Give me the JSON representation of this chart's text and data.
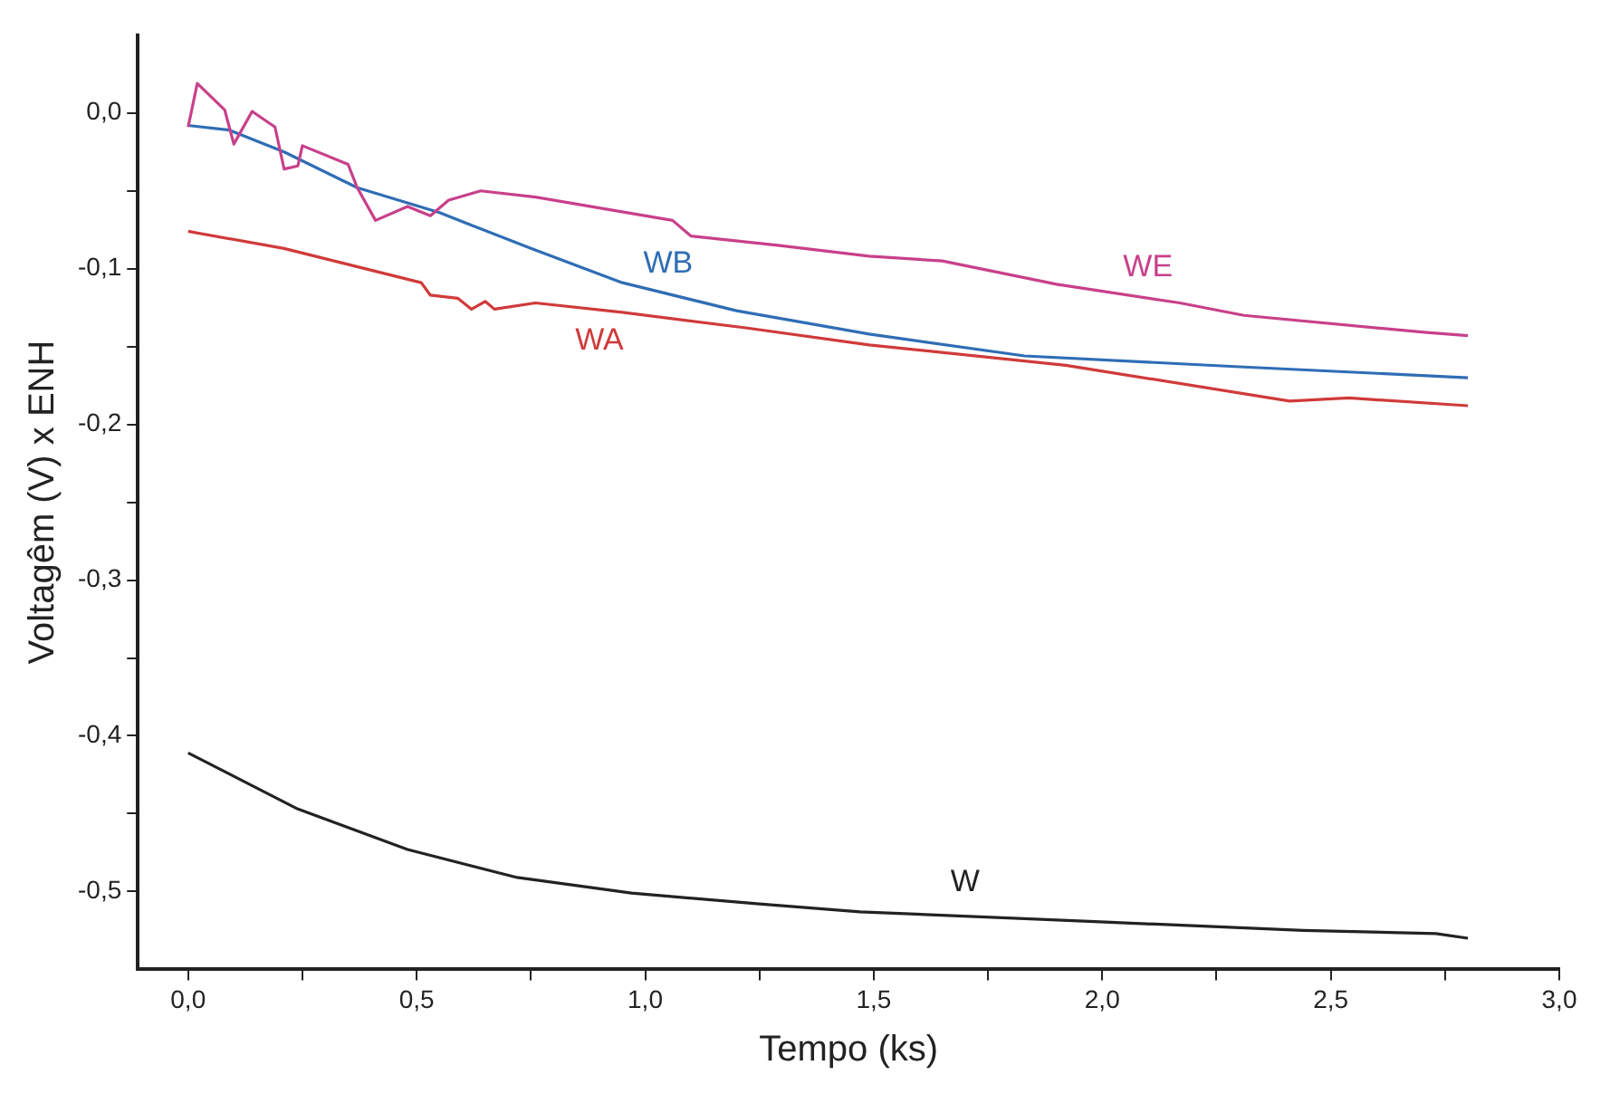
{
  "chart_data": {
    "type": "line",
    "xlabel": "Tempo (ks)",
    "ylabel": "Voltagêm (V) x ENH",
    "xlim": [
      -0.11,
      3.0
    ],
    "ylim": [
      -0.55,
      0.05
    ],
    "xticks": [
      {
        "value": 0,
        "label": "0,0"
      },
      {
        "value": 0.25,
        "label": null
      },
      {
        "value": 0.5,
        "label": "0,5"
      },
      {
        "value": 0.75,
        "label": null
      },
      {
        "value": 1,
        "label": "1,0"
      },
      {
        "value": 1.25,
        "label": null
      },
      {
        "value": 1.5,
        "label": "1,5"
      },
      {
        "value": 1.75,
        "label": null
      },
      {
        "value": 2,
        "label": "2,0"
      },
      {
        "value": 2.25,
        "label": null
      },
      {
        "value": 2.5,
        "label": "2,5"
      },
      {
        "value": 2.75,
        "label": null
      },
      {
        "value": 3,
        "label": "3,0"
      }
    ],
    "yticks": [
      {
        "value": -0.5,
        "label": "-0,5"
      },
      {
        "value": -0.45,
        "label": null
      },
      {
        "value": -0.4,
        "label": "-0,4"
      },
      {
        "value": -0.35,
        "label": null
      },
      {
        "value": -0.3,
        "label": "-0,3"
      },
      {
        "value": -0.25,
        "label": null
      },
      {
        "value": -0.2,
        "label": "-0,2"
      },
      {
        "value": -0.15,
        "label": null
      },
      {
        "value": -0.1,
        "label": "-0,1"
      },
      {
        "value": -0.05,
        "label": null
      },
      {
        "value": 0,
        "label": "0,0"
      }
    ],
    "grid": false,
    "legend": false,
    "marker": "none",
    "line_style": "solid",
    "series": [
      {
        "name": "WE",
        "color": "#c8408a",
        "x": [
          0,
          0.02,
          0.08,
          0.1,
          0.14,
          0.19,
          0.21,
          0.24,
          0.25,
          0.35,
          0.37,
          0.41,
          0.48,
          0.53,
          0.57,
          0.64,
          0.76,
          1.06,
          1.1,
          1.29,
          1.49,
          1.65,
          1.9,
          2.17,
          2.31,
          2.71,
          2.8
        ],
        "values": [
          -0.009,
          0.019,
          0.002,
          -0.02,
          0.001,
          -0.009,
          -0.036,
          -0.034,
          -0.021,
          -0.033,
          -0.048,
          -0.069,
          -0.06,
          -0.066,
          -0.056,
          -0.05,
          -0.054,
          -0.069,
          -0.079,
          -0.085,
          -0.092,
          -0.095,
          -0.11,
          -0.122,
          -0.13,
          -0.141,
          -0.143
        ]
      },
      {
        "name": "WB",
        "color": "#2f6db5",
        "x": [
          0,
          0.09,
          0.21,
          0.37,
          0.55,
          0.75,
          0.95,
          1.2,
          1.49,
          1.83,
          2.3,
          2.8
        ],
        "values": [
          -0.008,
          -0.011,
          -0.025,
          -0.048,
          -0.064,
          -0.087,
          -0.109,
          -0.127,
          -0.142,
          -0.156,
          -0.163,
          -0.17
        ]
      },
      {
        "name": "WA",
        "color": "#d03a3a",
        "x": [
          0,
          0.21,
          0.51,
          0.53,
          0.59,
          0.62,
          0.65,
          0.67,
          0.76,
          0.95,
          1.22,
          1.49,
          1.92,
          2.41,
          2.54,
          2.8
        ],
        "values": [
          -0.076,
          -0.087,
          -0.109,
          -0.117,
          -0.119,
          -0.126,
          -0.121,
          -0.126,
          -0.122,
          -0.128,
          -0.138,
          -0.149,
          -0.162,
          -0.185,
          -0.183,
          -0.188
        ]
      },
      {
        "name": "W",
        "color": "#222222",
        "x": [
          0,
          0.24,
          0.48,
          0.72,
          0.97,
          1.25,
          1.47,
          1.96,
          2.44,
          2.73,
          2.8
        ],
        "values": [
          -0.411,
          -0.447,
          -0.473,
          -0.491,
          -0.501,
          -0.508,
          -0.513,
          -0.519,
          -0.525,
          -0.527,
          -0.53
        ]
      }
    ]
  }
}
